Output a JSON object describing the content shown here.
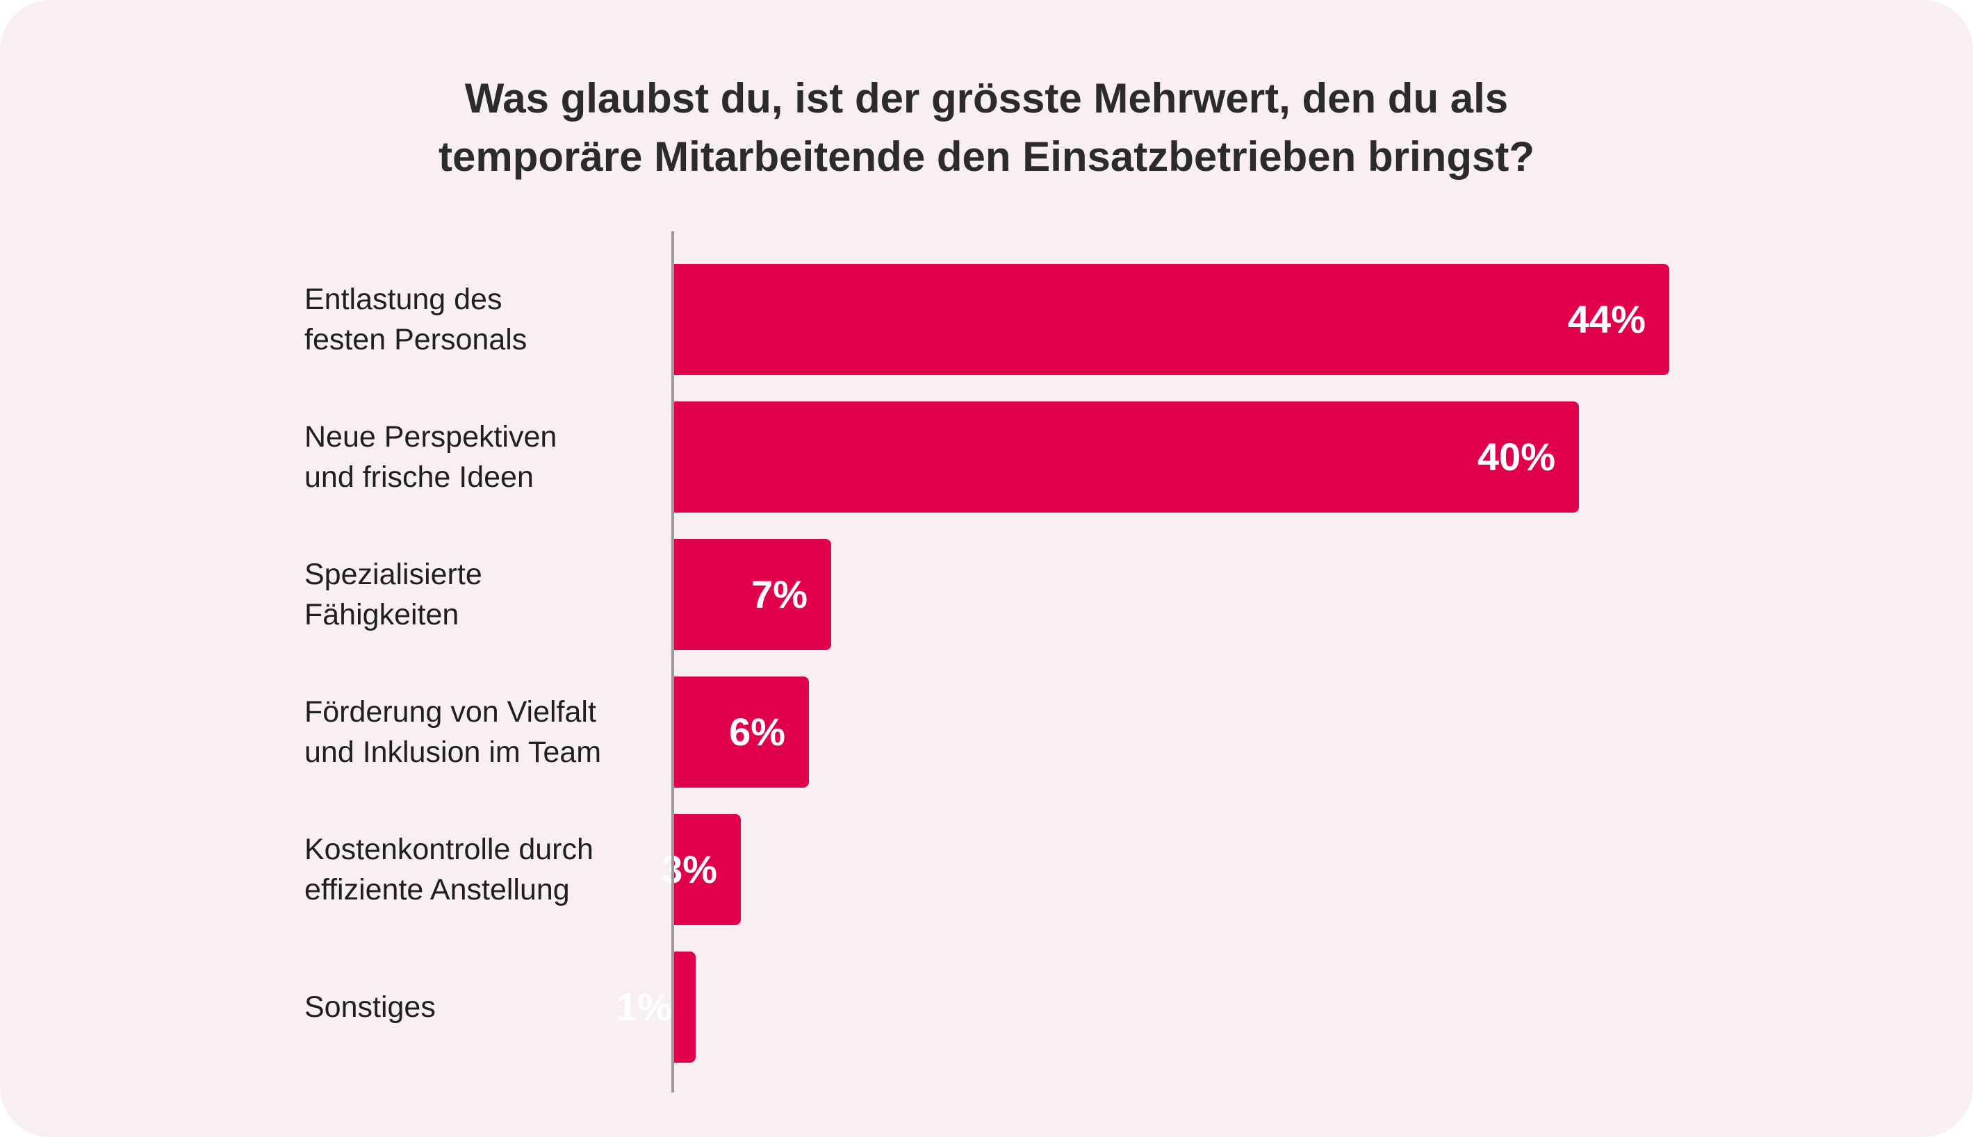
{
  "chart_data": {
    "type": "bar",
    "orientation": "horizontal",
    "title_lines": [
      "Was glaubst du, ist der grösste Mehrwert, den du als",
      "temporäre Mitarbeitende den Einsatzbetrieben bringst?"
    ],
    "categories": [
      [
        "Entlastung des",
        "festen Personals"
      ],
      [
        "Neue Perspektiven",
        "und frische Ideen"
      ],
      [
        "Spezialisierte",
        "Fähigkeiten"
      ],
      [
        "Förderung von Vielfalt",
        "und Inklusion im Team"
      ],
      [
        "Kostenkontrolle durch",
        "effiziente Anstellung"
      ],
      [
        "Sonstiges"
      ]
    ],
    "values": [
      44,
      40,
      7,
      6,
      3,
      1
    ],
    "value_labels": [
      "44%",
      "40%",
      "7%",
      "6%",
      "3%",
      "1%"
    ],
    "unit": "%",
    "grid": false,
    "legend": "none",
    "bar_color": "#e0004d",
    "background_color": "#f9eef2"
  }
}
